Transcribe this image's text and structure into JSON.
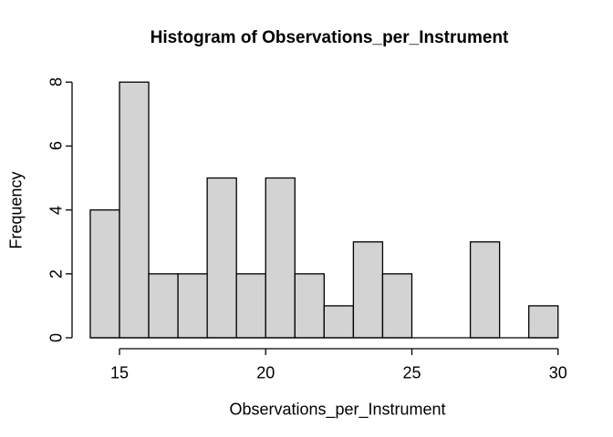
{
  "figure": {
    "background": "#ffffff"
  },
  "chart_data": {
    "type": "bar",
    "subtype": "histogram",
    "title": "Histogram of Observations_per_Instrument",
    "xlabel": "Observations_per_Instrument",
    "ylabel": "Frequency",
    "bin_edges": [
      14,
      15,
      16,
      17,
      18,
      19,
      20,
      21,
      22,
      23,
      24,
      25,
      26,
      27,
      28,
      29,
      30
    ],
    "frequencies": [
      4,
      8,
      2,
      2,
      5,
      2,
      5,
      2,
      1,
      3,
      2,
      0,
      0,
      3,
      0,
      1
    ],
    "x_ticks": [
      15,
      20,
      25,
      30
    ],
    "y_ticks": [
      0,
      2,
      4,
      6,
      8
    ],
    "xlim": [
      14,
      30
    ],
    "ylim": [
      0,
      8
    ],
    "grid": false,
    "legend": false,
    "bar_fill": "#d3d3d3",
    "bar_border": "#000000",
    "axis_color": "#000000",
    "text_color": "#000000"
  }
}
